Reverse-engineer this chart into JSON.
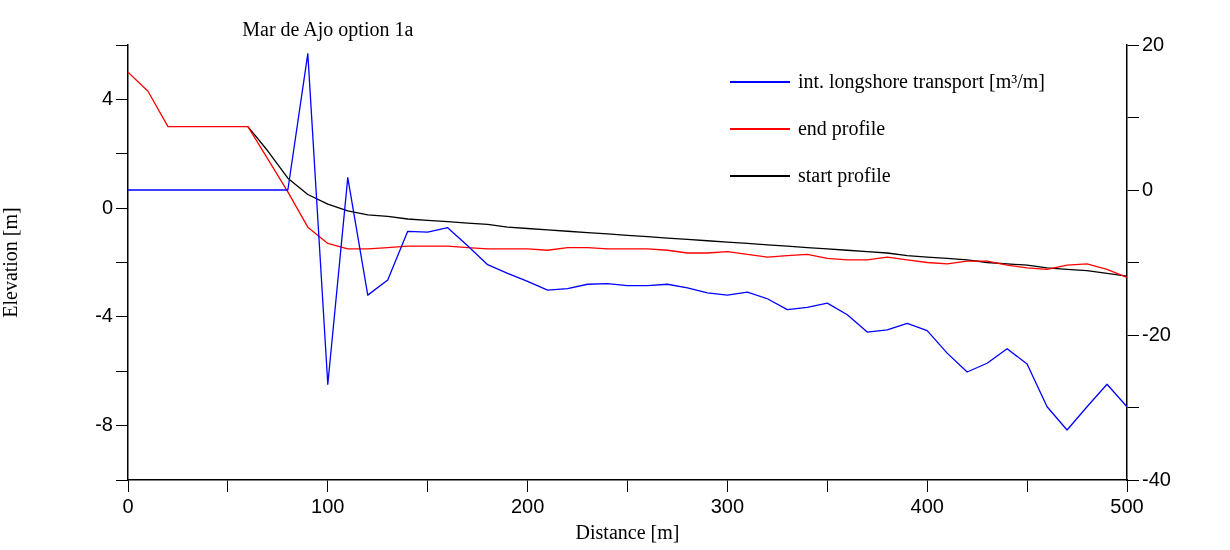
{
  "chart_data": {
    "type": "line",
    "title": "Mar de Ajo option 1a",
    "xlabel": "Distance [m]",
    "ylabel": "Elevation [m]",
    "x": [
      0,
      10,
      20,
      30,
      40,
      50,
      60,
      70,
      80,
      90,
      100,
      110,
      120,
      130,
      140,
      150,
      160,
      170,
      180,
      190,
      200,
      210,
      220,
      230,
      240,
      250,
      260,
      270,
      280,
      290,
      300,
      310,
      320,
      330,
      340,
      350,
      360,
      370,
      380,
      390,
      400,
      410,
      420,
      430,
      440,
      450,
      460,
      470,
      480,
      490,
      500
    ],
    "series": [
      {
        "name": "int. longshore transport [m³/m]",
        "color": "#0000ff",
        "axis": "y2",
        "values": [
          0,
          0,
          0,
          0,
          0,
          0,
          0,
          0,
          0,
          18.8,
          -26.8,
          1.7,
          -14.5,
          -12.4,
          -5.7,
          -5.8,
          -5.2,
          -7.7,
          -10.3,
          -11.5,
          -12.6,
          -13.8,
          -13.6,
          -13.0,
          -12.9,
          -13.2,
          -13.2,
          -13.0,
          -13.5,
          -14.2,
          -14.5,
          -14.1,
          -15.0,
          -16.5,
          -16.2,
          -15.6,
          -17.2,
          -19.6,
          -19.3,
          -18.4,
          -19.4,
          -22.5,
          -25.1,
          -23.9,
          -21.9,
          -24.0,
          -29.9,
          -33.1,
          -29.9,
          -26.8,
          -29.9
        ]
      },
      {
        "name": "end profile",
        "color": "#ff0000",
        "values": [
          5.0,
          4.3,
          3.0,
          3.0,
          3.0,
          3.0,
          3.0,
          1.8,
          0.6,
          -0.7,
          -1.3,
          -1.5,
          -1.5,
          -1.45,
          -1.4,
          -1.4,
          -1.4,
          -1.45,
          -1.5,
          -1.5,
          -1.5,
          -1.55,
          -1.45,
          -1.45,
          -1.5,
          -1.5,
          -1.5,
          -1.55,
          -1.65,
          -1.65,
          -1.6,
          -1.7,
          -1.8,
          -1.75,
          -1.7,
          -1.85,
          -1.9,
          -1.9,
          -1.8,
          -1.9,
          -2.0,
          -2.05,
          -1.95,
          -1.95,
          -2.1,
          -2.2,
          -2.25,
          -2.1,
          -2.05,
          -2.25,
          -2.55
        ]
      },
      {
        "name": "start profile",
        "color": "#000000",
        "values": [
          null,
          null,
          null,
          null,
          null,
          null,
          3.0,
          2.1,
          1.1,
          0.5,
          0.15,
          -0.1,
          -0.25,
          -0.3,
          -0.4,
          -0.45,
          -0.5,
          -0.55,
          -0.6,
          -0.7,
          -0.75,
          -0.8,
          -0.85,
          -0.9,
          -0.95,
          -1.0,
          -1.05,
          -1.1,
          -1.15,
          -1.2,
          -1.25,
          -1.3,
          -1.35,
          -1.4,
          -1.45,
          -1.5,
          -1.55,
          -1.6,
          -1.65,
          -1.75,
          -1.8,
          -1.85,
          -1.9,
          -2.0,
          -2.05,
          -2.1,
          -2.2,
          -2.25,
          -2.3,
          -2.4,
          -2.5
        ]
      }
    ],
    "xlim": [
      0,
      500
    ],
    "xticks": [
      0,
      {
        "value": 50,
        "label": null
      },
      100,
      {
        "value": 150,
        "label": null
      },
      200,
      {
        "value": 250,
        "label": null
      },
      300,
      {
        "value": 350,
        "label": null
      },
      400,
      {
        "value": 450,
        "label": null
      },
      500
    ],
    "ylim": [
      -10,
      6
    ],
    "yticks": [
      {
        "value": -10,
        "label": null
      },
      -8,
      {
        "value": -6,
        "label": null
      },
      -4,
      {
        "value": -2,
        "label": null
      },
      0,
      {
        "value": 2,
        "label": null
      },
      4,
      {
        "value": 6,
        "label": null
      }
    ],
    "y2lim": [
      -40,
      20
    ],
    "y2ticks": [
      -40,
      {
        "value": -30,
        "label": null
      },
      -20,
      {
        "value": -10,
        "label": null
      },
      0,
      {
        "value": 10,
        "label": null
      },
      20
    ],
    "legend": "top right",
    "marker": "none",
    "line_style": "solid"
  }
}
